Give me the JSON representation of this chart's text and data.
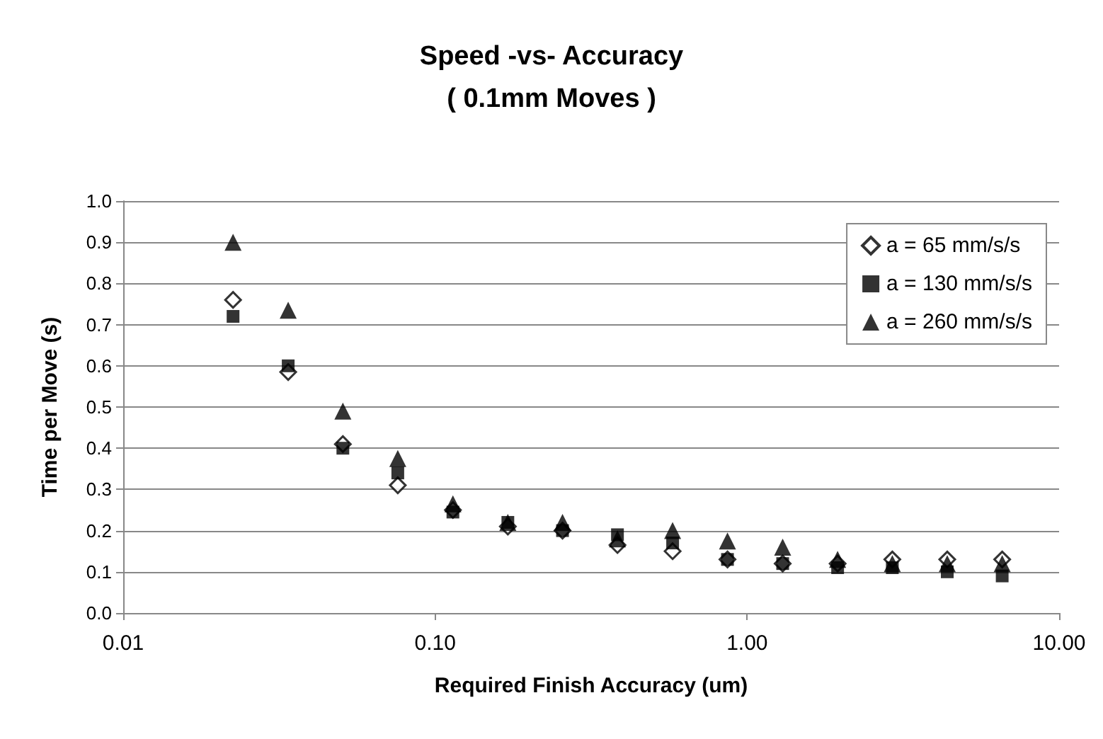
{
  "chart_data": {
    "type": "scatter",
    "title": "Speed -vs- Accuracy\n( 0.1mm Moves )",
    "xlabel": "Required Finish Accuracy (um)",
    "ylabel": "Time per Move (s)",
    "x": [
      0.0225,
      0.0338,
      0.0506,
      0.0759,
      0.114,
      0.171,
      0.256,
      0.384,
      0.577,
      0.865,
      1.3,
      1.95,
      2.92,
      4.38,
      6.57
    ],
    "series": [
      {
        "name": "a = 65 mm/s/s",
        "color": "#000000",
        "marker": "diamond",
        "values": [
          0.76,
          0.585,
          0.41,
          0.31,
          0.25,
          0.21,
          0.2,
          0.165,
          0.15,
          0.13,
          0.12,
          0.12,
          0.13,
          0.13,
          0.13
        ]
      },
      {
        "name": "a = 130 mm/s/s",
        "color": "#000000",
        "marker": "square",
        "values": [
          0.72,
          0.6,
          0.4,
          0.34,
          0.245,
          0.22,
          0.2,
          0.19,
          0.17,
          0.13,
          0.12,
          0.11,
          0.11,
          0.1,
          0.09
        ]
      },
      {
        "name": "a = 260 mm/s/s",
        "color": "#000000",
        "marker": "triangle",
        "values": [
          0.9,
          0.735,
          0.49,
          0.375,
          0.265,
          0.22,
          0.22,
          0.18,
          0.2,
          0.175,
          0.16,
          0.13,
          0.12,
          0.12,
          0.12
        ]
      }
    ],
    "log": "x",
    "xlim": [
      0.01,
      10
    ],
    "xticks": [
      0.01,
      {
        "value": 0.1,
        "label": "0.10"
      },
      {
        "value": 1,
        "label": "1.00"
      },
      {
        "value": 10,
        "label": "10.00"
      }
    ],
    "ylim": [
      0,
      1
    ],
    "yticks": [
      {
        "value": 0,
        "label": "0.0"
      },
      0.1,
      0.2,
      0.3,
      0.4,
      0.5,
      0.6,
      0.7,
      0.8,
      0.9,
      {
        "value": 1,
        "label": "1.0"
      }
    ],
    "grid": "y",
    "legend": "top right"
  }
}
